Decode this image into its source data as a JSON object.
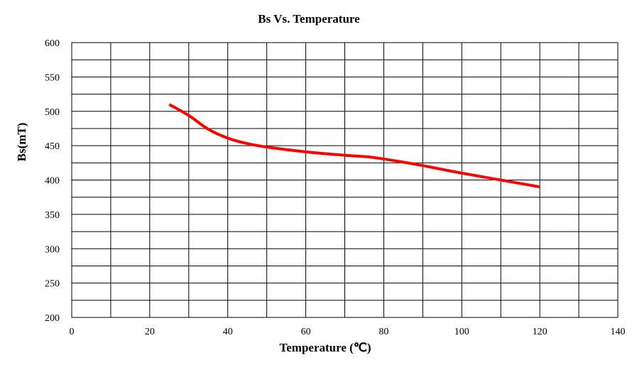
{
  "chart_data": {
    "type": "line",
    "title": "Bs Vs. Temperature",
    "xlabel": "Temperature (℃)",
    "ylabel": "Bs(mT)",
    "xlim": [
      0,
      140
    ],
    "ylim": [
      200,
      600
    ],
    "x_ticks": [
      "0",
      "20",
      "40",
      "60",
      "80",
      "100",
      "120",
      "140"
    ],
    "y_ticks": [
      "200",
      "250",
      "300",
      "350",
      "400",
      "450",
      "500",
      "550",
      "600"
    ],
    "grid": true,
    "legend": "none",
    "series": [
      {
        "color": "#ff0000",
        "x": [
          25,
          30,
          35,
          40,
          45,
          50,
          60,
          70,
          77,
          85,
          90,
          100,
          110,
          120
        ],
        "y": [
          510,
          494,
          474,
          461,
          453,
          448,
          441,
          436,
          433,
          426,
          421,
          410,
          400,
          390
        ]
      }
    ]
  }
}
